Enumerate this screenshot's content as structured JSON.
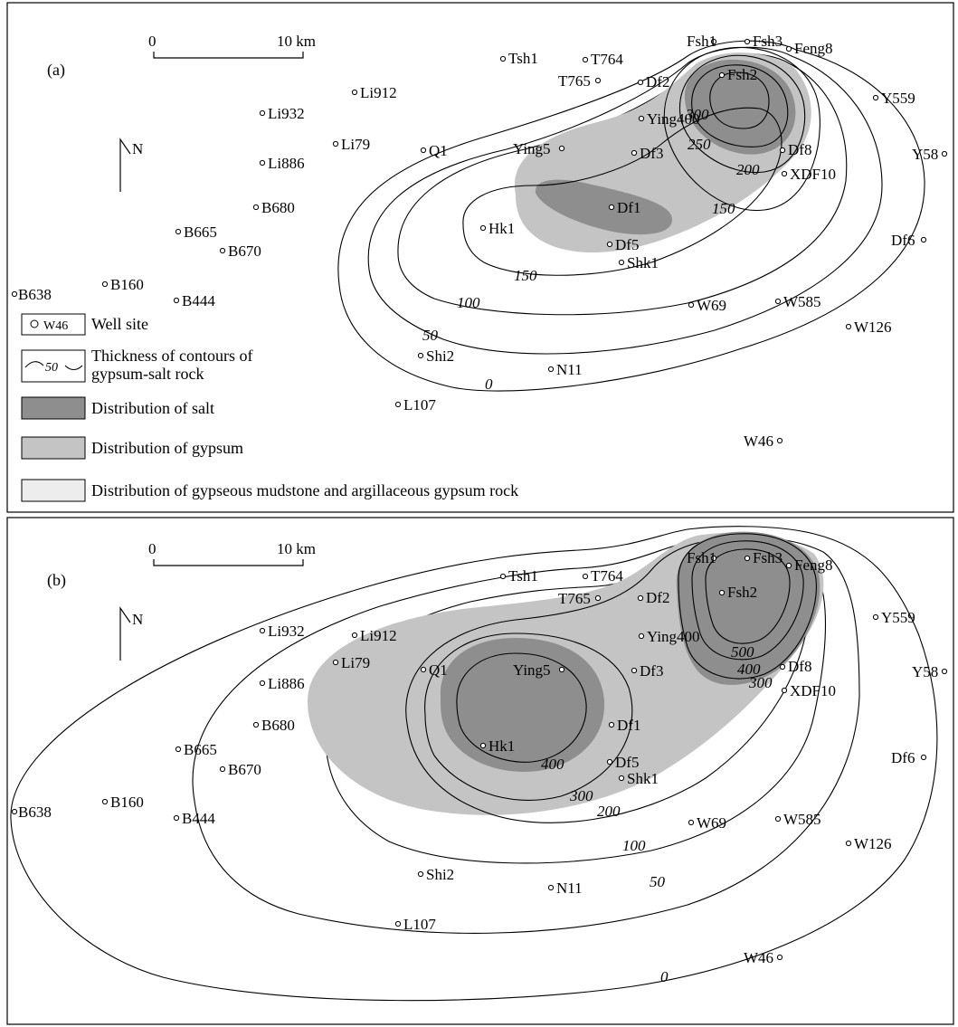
{
  "panels": [
    {
      "label": "(a)",
      "scale": {
        "zero": "0",
        "distance": "10 km"
      },
      "north": "N",
      "contour_labels": [
        "0",
        "50",
        "100",
        "150",
        "150",
        "200",
        "250",
        "300"
      ],
      "wells": [
        "Fsh1",
        "Fsh3",
        "Feng8",
        "Tsh1",
        "T764",
        "T765",
        "Df2",
        "Fsh2",
        "Y559",
        "Li912",
        "Li932",
        "Ying400",
        "Li79",
        "Q1",
        "Ying5",
        "Df3",
        "Df8",
        "Y58",
        "Li886",
        "XDF10",
        "B680",
        "Df1",
        "Hk1",
        "B665",
        "B670",
        "Df5",
        "Df6",
        "Shk1",
        "B638",
        "B160",
        "B444",
        "W69",
        "W585",
        "W126",
        "Shi2",
        "N11",
        "L107",
        "W46"
      ]
    },
    {
      "label": "(b)",
      "scale": {
        "zero": "0",
        "distance": "10 km"
      },
      "north": "N",
      "contour_labels": [
        "0",
        "50",
        "100",
        "200",
        "300",
        "400",
        "300",
        "400",
        "500"
      ],
      "wells": [
        "Fsh1",
        "Fsh3",
        "Feng8",
        "Tsh1",
        "T764",
        "T765",
        "Df2",
        "Fsh2",
        "Y559",
        "Li912",
        "Li932",
        "Ying400",
        "Li79",
        "Q1",
        "Ying5",
        "Df3",
        "Df8",
        "Y58",
        "Li886",
        "XDF10",
        "B680",
        "Df1",
        "Hk1",
        "B665",
        "B670",
        "Df5",
        "Df6",
        "Shk1",
        "B638",
        "B160",
        "B444",
        "W69",
        "W585",
        "W126",
        "Shi2",
        "N11",
        "L107",
        "W46"
      ]
    }
  ],
  "legend": {
    "well_symbol_label": "W46",
    "well_site": "Well site",
    "contour_symbol_label": "50",
    "contour_line1": "Thickness of contours of",
    "contour_line2": "gypsum-salt rock",
    "salt": "Distribution of salt",
    "gypsum": "Distribution of gypsum",
    "mudstone": "Distribution of gypseous mudstone and argillaceous  gypsum rock"
  },
  "colors": {
    "salt": "#8e8e8e",
    "gypsum": "#c4c4c4",
    "mudstone": "#ededed"
  }
}
